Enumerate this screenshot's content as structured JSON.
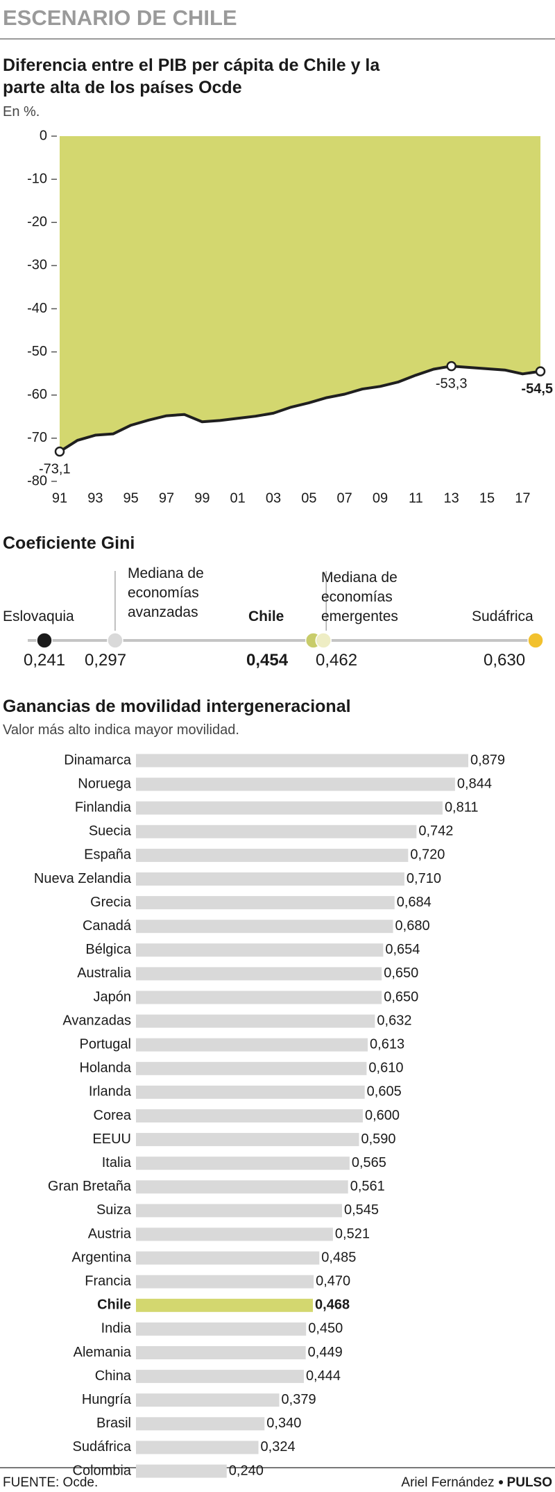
{
  "header": {
    "title": "ESCENARIO DE CHILE"
  },
  "chart_data": [
    {
      "type": "area",
      "title": "Diferencia entre el PIB per cápita de Chile y la parte alta de los países Ocde",
      "subtitle": "En %.",
      "x": [
        1991,
        1992,
        1993,
        1994,
        1995,
        1996,
        1997,
        1998,
        1999,
        2000,
        2001,
        2002,
        2003,
        2004,
        2005,
        2006,
        2007,
        2008,
        2009,
        2010,
        2011,
        2012,
        2013,
        2014,
        2015,
        2016,
        2017,
        2018
      ],
      "values": [
        -73.1,
        -70.5,
        -69.3,
        -69.0,
        -67.0,
        -65.8,
        -64.8,
        -64.5,
        -66.2,
        -65.9,
        -65.4,
        -64.9,
        -64.2,
        -62.8,
        -61.8,
        -60.6,
        -59.8,
        -58.6,
        -58.0,
        -57.0,
        -55.4,
        -54.0,
        -53.3,
        -53.6,
        -53.9,
        -54.2,
        -55.1,
        -54.5
      ],
      "value_labels": [
        "-73,1",
        null,
        null,
        null,
        null,
        null,
        null,
        null,
        null,
        null,
        null,
        null,
        null,
        null,
        null,
        null,
        null,
        null,
        null,
        null,
        null,
        null,
        "-53,3",
        null,
        null,
        null,
        null,
        "-54,5"
      ],
      "xlim": [
        1991,
        2018
      ],
      "xticks": [
        {
          "value": 1991,
          "label": "91"
        },
        {
          "value": 1993,
          "label": "93"
        },
        {
          "value": 1995,
          "label": "95"
        },
        {
          "value": 1997,
          "label": "97"
        },
        {
          "value": 1999,
          "label": "99"
        },
        {
          "value": 2001,
          "label": "01"
        },
        {
          "value": 2003,
          "label": "03"
        },
        {
          "value": 2005,
          "label": "05"
        },
        {
          "value": 2007,
          "label": "07"
        },
        {
          "value": 2009,
          "label": "09"
        },
        {
          "value": 2011,
          "label": "11"
        },
        {
          "value": 2013,
          "label": "13"
        },
        {
          "value": 2015,
          "label": "15"
        },
        {
          "value": 2017,
          "label": "17"
        }
      ],
      "ylim": [
        -80,
        0
      ],
      "yticks": [
        0,
        -10,
        -20,
        -30,
        -40,
        -50,
        -60,
        -70,
        -80
      ],
      "color": "#d3d76f",
      "line_color": "#1f1f1f"
    },
    {
      "type": "dot",
      "title": "Coeficiente Gini",
      "categories": [
        "Eslovaquia",
        "Mediana de economías avanzadas",
        "Chile",
        "Mediana de economías emergentes",
        "Sudáfrica"
      ],
      "values": [
        0.241,
        0.297,
        0.454,
        0.462,
        0.63
      ],
      "value_labels": [
        "0,241",
        "0,297",
        "0,454",
        "0,462",
        "0,630"
      ],
      "colors": [
        "#1a1a1a",
        "#d9d9d9",
        "#c8cc6a",
        "#eeedc4",
        "#f2c12e"
      ]
    },
    {
      "type": "bar",
      "title": "Ganancias de movilidad intergeneracional",
      "subtitle": "Valor más alto indica mayor movilidad.",
      "categories": [
        "Dinamarca",
        "Noruega",
        "Finlandia",
        "Suecia",
        "España",
        "Nueva Zelandia",
        "Grecia",
        "Canadá",
        "Bélgica",
        "Australia",
        "Japón",
        "Avanzadas",
        "Portugal",
        "Holanda",
        "Irlanda",
        "Corea",
        "EEUU",
        "Italia",
        "Gran Bretaña",
        "Suiza",
        "Austria",
        "Argentina",
        "Francia",
        "Chile",
        "India",
        "Alemania",
        "China",
        "Hungría",
        "Brasil",
        "Sudáfrica",
        "Colombia"
      ],
      "values": [
        0.879,
        0.844,
        0.811,
        0.742,
        0.72,
        0.71,
        0.684,
        0.68,
        0.654,
        0.65,
        0.65,
        0.632,
        0.613,
        0.61,
        0.605,
        0.6,
        0.59,
        0.565,
        0.561,
        0.545,
        0.521,
        0.485,
        0.47,
        0.468,
        0.45,
        0.449,
        0.444,
        0.379,
        0.34,
        0.324,
        0.24
      ],
      "value_labels": [
        "0,879",
        "0,844",
        "0,811",
        "0,742",
        "0,720",
        "0,710",
        "0,684",
        "0,680",
        "0,654",
        "0,650",
        "0,650",
        "0,632",
        "0,613",
        "0,610",
        "0,605",
        "0,600",
        "0,590",
        "0,565",
        "0,561",
        "0,545",
        "0,521",
        "0,485",
        "0,470",
        "0,468",
        "0,450",
        "0,449",
        "0,444",
        "0,379",
        "0,340",
        "0,324",
        "0,240"
      ],
      "colors": [
        "#d9d9d9",
        "#d9d9d9",
        "#d9d9d9",
        "#d9d9d9",
        "#d9d9d9",
        "#d9d9d9",
        "#d9d9d9",
        "#d9d9d9",
        "#d9d9d9",
        "#d9d9d9",
        "#d9d9d9",
        "#d9d9d9",
        "#d9d9d9",
        "#d9d9d9",
        "#d9d9d9",
        "#d9d9d9",
        "#d9d9d9",
        "#d9d9d9",
        "#d9d9d9",
        "#d9d9d9",
        "#d9d9d9",
        "#d9d9d9",
        "#d9d9d9",
        "#d3d76f",
        "#d9d9d9",
        "#d9d9d9",
        "#d9d9d9",
        "#d9d9d9",
        "#d9d9d9",
        "#d9d9d9",
        "#d9d9d9"
      ]
    }
  ],
  "footer": {
    "source": "FUENTE: Ocde.",
    "author": "Ariel Fernández",
    "brand": "PULSO"
  }
}
